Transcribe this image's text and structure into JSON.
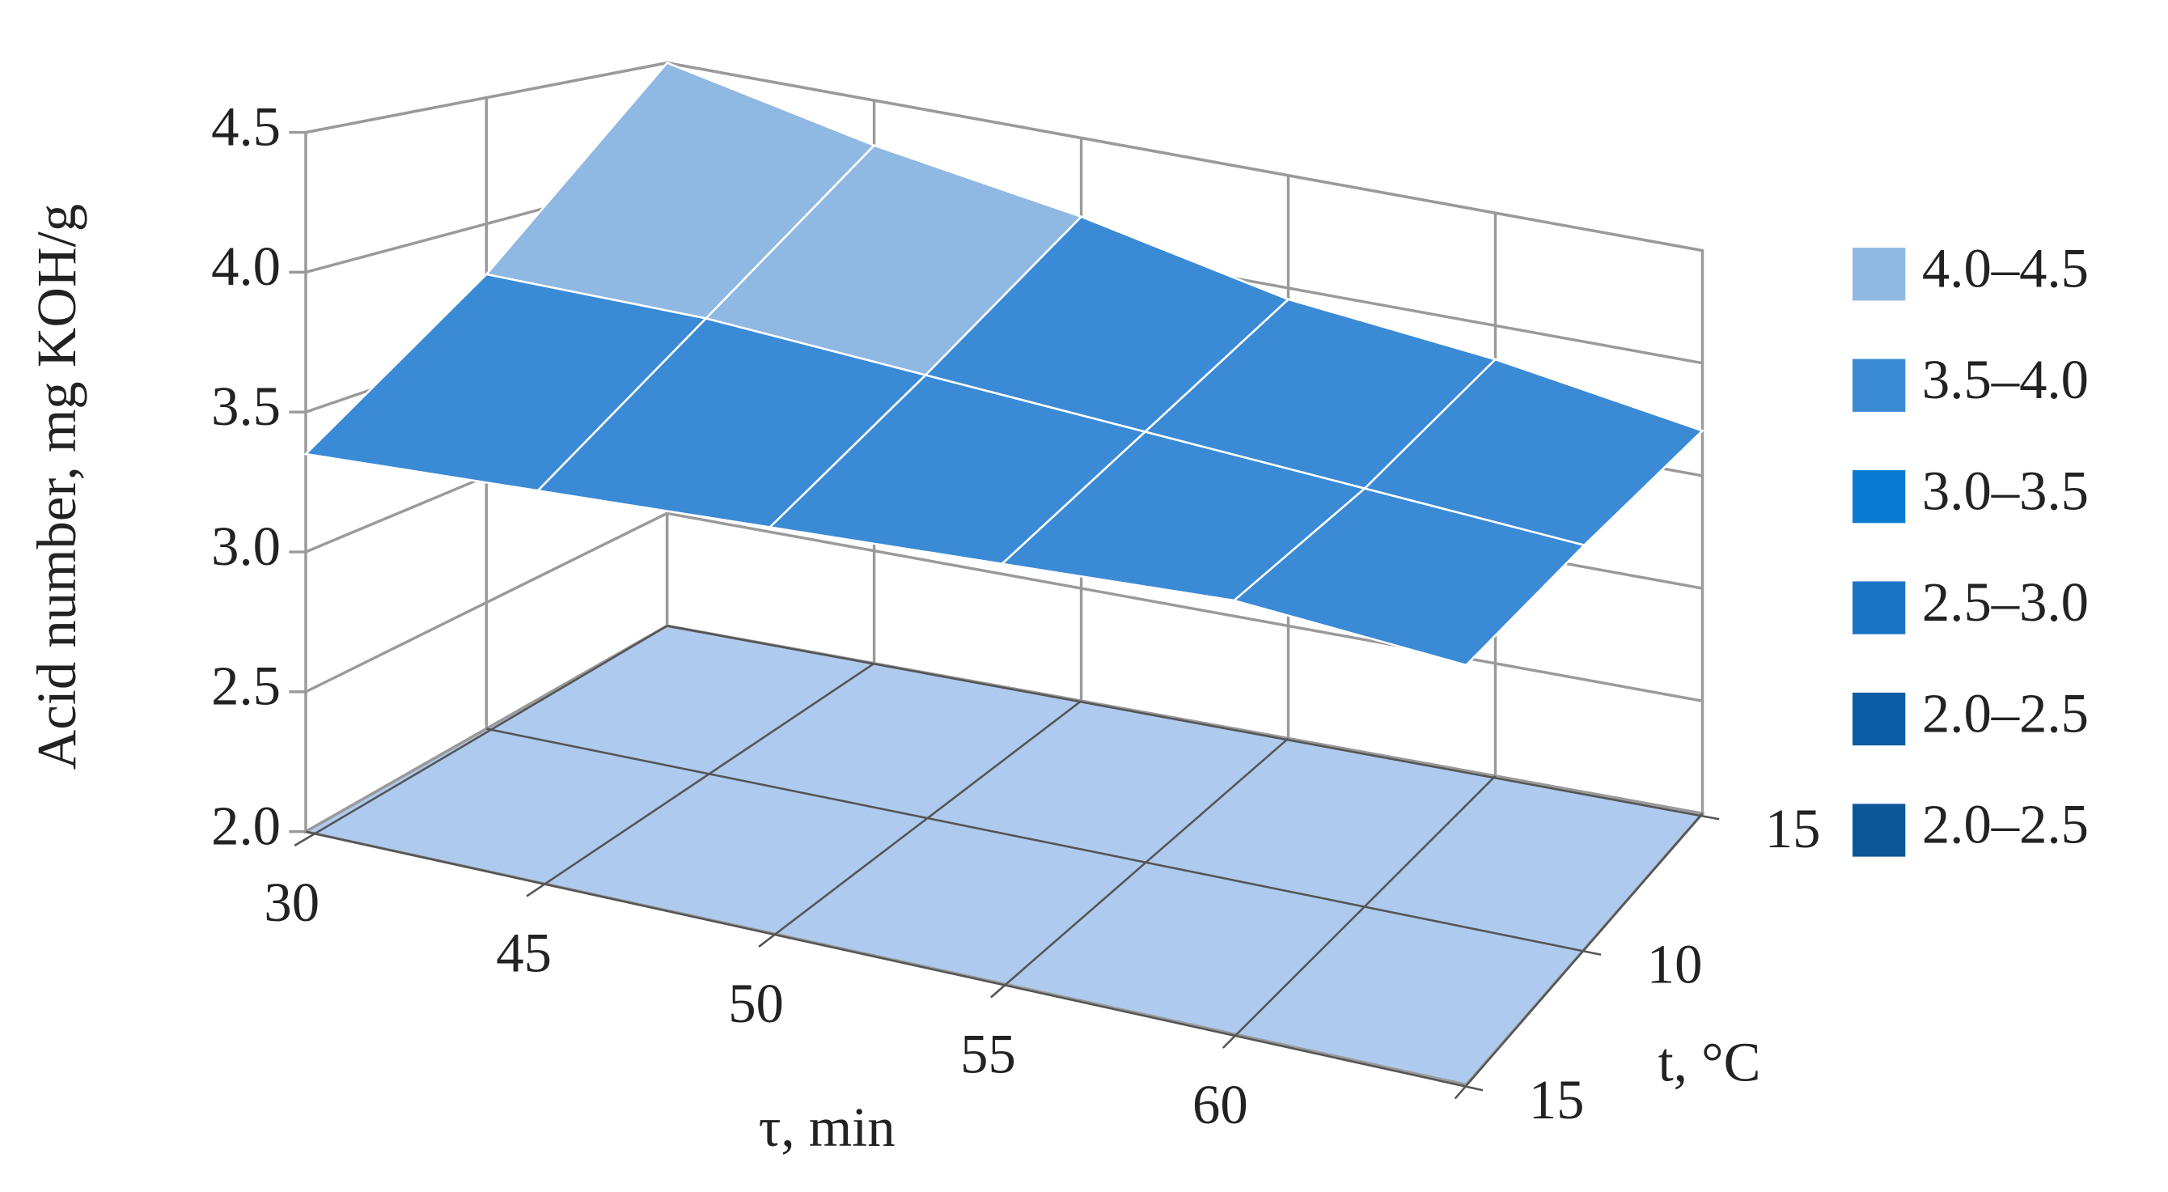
{
  "chart_data": {
    "type": "surface",
    "x_label": "τ, min",
    "y_label": "Acid number, mg KOH/g",
    "depth_label": "t, °C",
    "categories": [
      "30",
      "45",
      "50",
      "55",
      "60",
      null
    ],
    "series": [
      {
        "name": "15",
        "values": [
          3.35,
          3.4,
          3.45,
          3.5,
          3.55,
          3.5
        ]
      },
      {
        "name": "10",
        "values": [
          3.8,
          3.8,
          3.75,
          3.7,
          3.65,
          3.6
        ]
      },
      {
        "name": "15",
        "values": [
          4.5,
          4.3,
          4.15,
          3.95,
          3.85,
          3.7
        ]
      }
    ],
    "ylim": [
      2.0,
      4.5
    ],
    "yticks": [
      {
        "value": 2.0,
        "label": "2.0"
      },
      {
        "value": 2.5,
        "label": "2.5"
      },
      {
        "value": 3.0,
        "label": "3.0"
      },
      {
        "value": 3.5,
        "label": "3.5"
      },
      {
        "value": 4.0,
        "label": "4.0"
      },
      {
        "value": 4.5,
        "label": "4.5"
      }
    ],
    "floor_color": "#aecbef",
    "legend": [
      {
        "name": "4.0–4.5",
        "color": "#8fb8e3"
      },
      {
        "name": "3.5–4.0",
        "color": "#3a8ad6"
      },
      {
        "name": "3.0–3.5",
        "color": "#0a7bd3"
      },
      {
        "name": "2.5–3.0",
        "color": "#1a74c6"
      },
      {
        "name": "2.0–2.5",
        "color": "#0b5ea6"
      },
      {
        "name": "2.0–2.5",
        "color": "#0b5899"
      }
    ]
  }
}
